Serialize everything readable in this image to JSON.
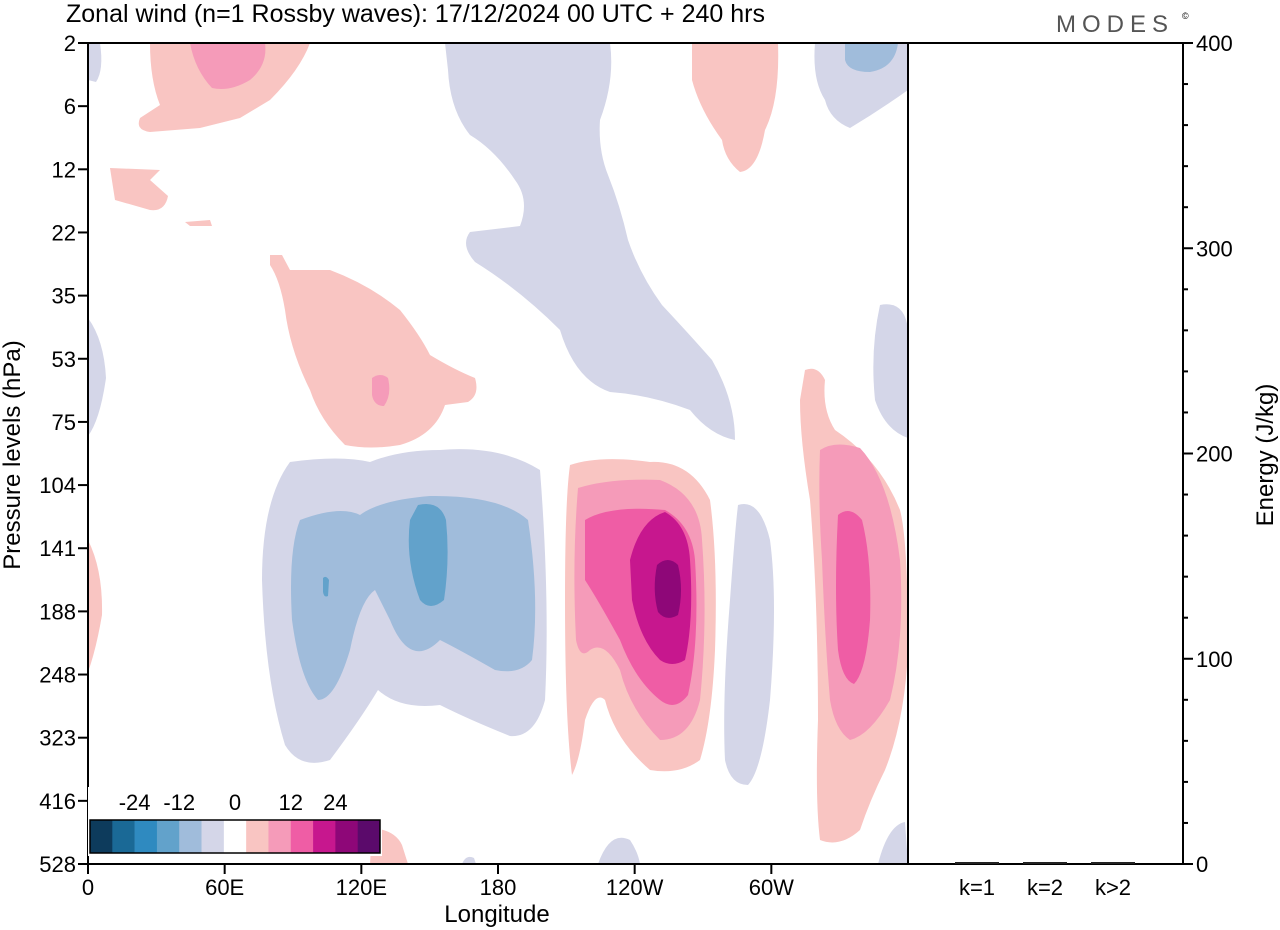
{
  "header": {
    "title": "Zonal wind (n=1 Rossby waves):  17/12/2024  00 UTC  + 240 hrs",
    "logo": "MODES",
    "logo_mark": "©"
  },
  "chart_data": [
    {
      "type": "heatmap",
      "title": "Zonal wind (n=1 Rossby waves):  17/12/2024  00 UTC  + 240 hrs",
      "xlabel": "Longitude",
      "ylabel": "Pressure levels (hPa)",
      "x_ticks": [
        "0",
        "60E",
        "120E",
        "180",
        "120W",
        "60W"
      ],
      "x_tick_degrees": [
        0,
        60,
        120,
        180,
        240,
        300
      ],
      "x_range_degrees": [
        0,
        360
      ],
      "y_ticks": [
        "2",
        "6",
        "12",
        "22",
        "35",
        "53",
        "75",
        "104",
        "141",
        "188",
        "248",
        "323",
        "416",
        "528"
      ],
      "y_scale": "model levels, top to bottom",
      "colorbar": {
        "tick_labels": [
          "-24",
          "-12",
          "0",
          "12",
          "24"
        ],
        "tick_values": [
          -24,
          -12,
          0,
          12,
          24
        ],
        "levels": [
          -30,
          -24,
          -18,
          -12,
          -6,
          -3,
          3,
          6,
          12,
          18,
          24,
          30
        ],
        "colors": [
          "#0d3b5c",
          "#1a6996",
          "#2f8ac0",
          "#62a2cb",
          "#a0bcdb",
          "#d4d6e8",
          "#ffffff",
          "#f9c5c2",
          "#f59bb9",
          "#ef5da5",
          "#c7178e",
          "#8e0778",
          "#5b0a6b"
        ]
      },
      "shading": [
        {
          "level": "-6 to -3",
          "color": "#d4d6e8",
          "region": "upper-level band 180 to 120W and lower troposphere 60E-180"
        },
        {
          "level": "-12 to -6",
          "color": "#a0bcdb",
          "region": "70E-180 near 141-248 hPa"
        },
        {
          "level": "-18 to -12",
          "color": "#62a2cb",
          "region": "near 150E, 141-188 hPa"
        },
        {
          "level": "3 to 6",
          "color": "#f9c5c2",
          "region": "120W and 30W columns, 53-75 hPa near 120E"
        },
        {
          "level": "6 to 24",
          "color": "#f59bb9",
          "region": "near 115W and 25W, 141-248 hPa"
        },
        {
          "level": "24 to 30",
          "color": "#8e0778",
          "region": "core near 112W, 170 hPa"
        }
      ]
    },
    {
      "type": "bar",
      "ylabel": "Energy (J/kg)",
      "categories": [
        "k=1",
        "k=2",
        "k>2"
      ],
      "values": [
        0.8,
        0.5,
        0.7
      ],
      "ylim": [
        0,
        400
      ],
      "y_ticks": [
        "0",
        "100",
        "200",
        "300",
        "400"
      ],
      "y_tick_values": [
        0,
        100,
        200,
        300,
        400
      ]
    }
  ]
}
